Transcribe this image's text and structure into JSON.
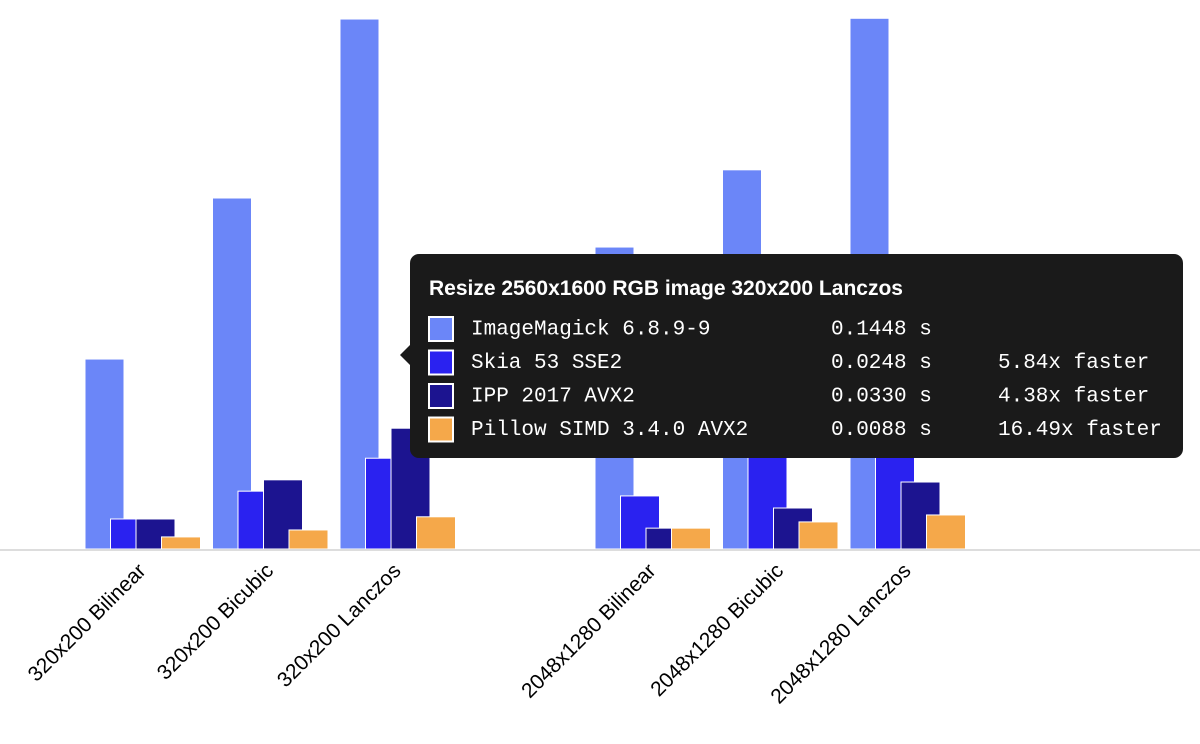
{
  "chart_data": {
    "type": "bar",
    "categories": [
      "320x200 Bilinear",
      "320x200 Bicubic",
      "320x200 Lanczos",
      null,
      "2048x1280 Bilinear",
      "2048x1280 Bicubic",
      "2048x1280 Lanczos"
    ],
    "series": [
      {
        "name": "ImageMagick 6.8.9-9",
        "color": "#6b86f8",
        "values": [
          0.0519,
          0.0959,
          0.1448,
          null,
          0.0825,
          0.1036,
          0.145
        ]
      },
      {
        "name": "Skia 53 SSE2",
        "color": "#2a22f0",
        "values": [
          0.0082,
          0.0158,
          0.0248,
          null,
          0.0145,
          0.0345,
          0.032
        ]
      },
      {
        "name": "IPP 2017 AVX2",
        "color": "#1c1490",
        "values": [
          0.0082,
          0.0189,
          0.033,
          null,
          0.0057,
          0.0112,
          0.0183
        ]
      },
      {
        "name": "Pillow SIMD 3.4.0 AVX2",
        "color": "#f5a84a",
        "values": [
          0.0033,
          0.0052,
          0.0088,
          null,
          0.0057,
          0.0074,
          0.0093
        ]
      }
    ],
    "tooltip": {
      "title": "Resize 2560x1600 RGB image 320x200 Lanczos",
      "times": [
        "0.1448 s",
        "0.0248 s",
        "0.0330 s",
        "0.0088 s"
      ],
      "speedups": [
        null,
        "5.84x faster",
        "4.38x faster",
        "16.49x faster"
      ]
    }
  }
}
